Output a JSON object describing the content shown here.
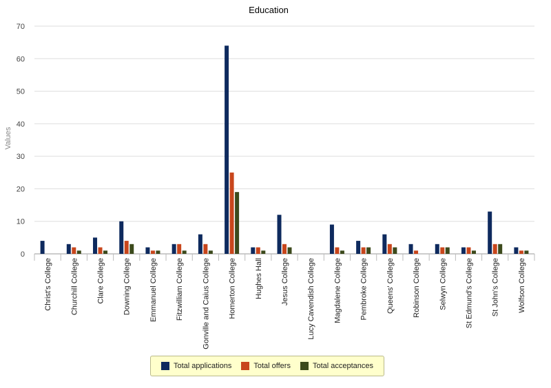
{
  "chart_data": {
    "type": "bar",
    "title": "Education",
    "xlabel": "",
    "ylabel": "Values",
    "ylim": [
      0,
      70
    ],
    "yticks": [
      0,
      10,
      20,
      30,
      40,
      50,
      60,
      70
    ],
    "grid": true,
    "legend_position": "bottom",
    "categories": [
      "Christ's College",
      "Churchill College",
      "Clare College",
      "Downing College",
      "Emmanuel College",
      "Fitzwilliam College",
      "Gonville and Caius College",
      "Homerton College",
      "Hughes Hall",
      "Jesus College",
      "Lucy Cavendish College",
      "Magdalene College",
      "Pembroke College",
      "Queens' College",
      "Robinson College",
      "Selwyn College",
      "St Edmund's College",
      "St John's College",
      "Wolfson College"
    ],
    "series": [
      {
        "name": "Total applications",
        "color": "#0e2a5e",
        "values": [
          4,
          3,
          5,
          10,
          2,
          3,
          6,
          64,
          2,
          12,
          0,
          9,
          4,
          6,
          3,
          3,
          2,
          13,
          2
        ]
      },
      {
        "name": "Total offers",
        "color": "#c8461c",
        "values": [
          0,
          2,
          2,
          4,
          1,
          3,
          3,
          25,
          2,
          3,
          0,
          2,
          2,
          3,
          1,
          2,
          2,
          3,
          1
        ]
      },
      {
        "name": "Total acceptances",
        "color": "#3c4a1c",
        "values": [
          0,
          1,
          1,
          3,
          1,
          1,
          1,
          19,
          1,
          2,
          0,
          1,
          2,
          2,
          0,
          2,
          1,
          3,
          1
        ]
      }
    ]
  }
}
